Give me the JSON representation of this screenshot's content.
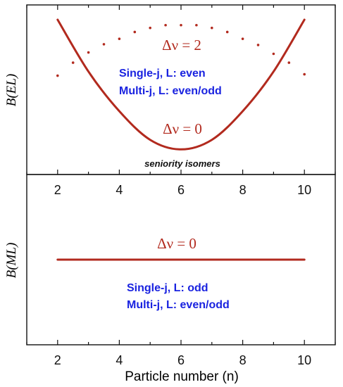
{
  "colors": {
    "curve": "#b22a1e",
    "blue_text": "#1a23e0",
    "axis": "#111111"
  },
  "chart_data": [
    {
      "type": "line",
      "panel": "top",
      "ylabel": "B(EL)",
      "x_ticks": [
        "2",
        "4",
        "6",
        "8",
        "10"
      ],
      "xlim": [
        1,
        11
      ],
      "ylim": [
        0,
        1
      ],
      "series": [
        {
          "name": "Δν = 0",
          "style": "solid",
          "x": [
            2,
            3,
            4,
            5,
            6,
            7,
            8,
            9,
            10
          ],
          "y": [
            1.0,
            0.62,
            0.33,
            0.12,
            0.05,
            0.12,
            0.33,
            0.62,
            1.0
          ]
        },
        {
          "name": "Δν = 2",
          "style": "dotted",
          "x": [
            2,
            3,
            4,
            5,
            6,
            7,
            8,
            9,
            10
          ],
          "y": [
            0.59,
            0.76,
            0.86,
            0.94,
            0.96,
            0.94,
            0.86,
            0.75,
            0.6
          ]
        }
      ],
      "annotations": {
        "delta2": "Δν = 2",
        "delta0": "Δν = 0",
        "single": "Single-j, L: even",
        "multi": "Multi-j, L: even/odd",
        "isomers": "seniority isomers"
      }
    },
    {
      "type": "line",
      "panel": "bottom",
      "ylabel": "B(ML)",
      "xlabel": "Particle number (n)",
      "x_ticks": [
        "2",
        "4",
        "6",
        "8",
        "10"
      ],
      "xlim": [
        1,
        11
      ],
      "ylim": [
        0,
        1
      ],
      "series": [
        {
          "name": "Δν = 0",
          "style": "solid",
          "x": [
            2,
            10
          ],
          "y": [
            0.5,
            0.5
          ]
        }
      ],
      "annotations": {
        "delta0": "Δν = 0",
        "single": "Single-j, L: odd",
        "multi": "Multi-j, L: even/odd"
      }
    }
  ]
}
